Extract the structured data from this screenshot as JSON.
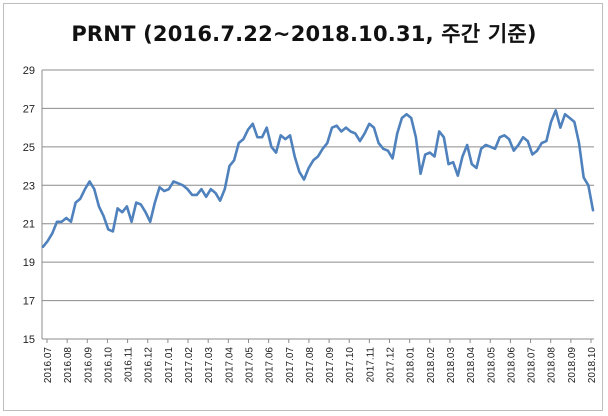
{
  "chart_data": {
    "type": "line",
    "title": "PRNT  (2016.7.22~2018.10.31, 주간 기준)",
    "xlabel": "",
    "ylabel": "",
    "ylim": [
      15,
      29
    ],
    "yticks": [
      15,
      17,
      19,
      21,
      23,
      25,
      27,
      29
    ],
    "grid": "horizontal",
    "legend": "none",
    "line_color": "#4F81BD",
    "x_labels": [
      "2016.07",
      "2016.08",
      "2016.09",
      "2016.10",
      "2016.11",
      "2016.12",
      "2017.01",
      "2017.02",
      "2017.03",
      "2017.04",
      "2017.05",
      "2017.06",
      "2017.07",
      "2017.08",
      "2017.09",
      "2017.10",
      "2017.11",
      "2017.12",
      "2018.01",
      "2018.02",
      "2018.03",
      "2018.04",
      "2018.05",
      "2018.06",
      "2018.07",
      "2018.08",
      "2018.09",
      "2018.10"
    ],
    "series": [
      {
        "values": [
          19.8,
          20.1,
          20.5,
          21.1,
          21.1,
          21.3,
          21.1,
          22.1,
          22.3,
          22.8,
          23.2,
          22.8,
          21.9,
          21.4,
          20.7,
          20.6,
          21.8,
          21.6,
          21.9,
          21.1,
          22.1,
          22.0,
          21.6,
          21.1,
          22.1,
          22.9,
          22.7,
          22.8,
          23.2,
          23.1,
          23.0,
          22.8,
          22.5,
          22.5,
          22.8,
          22.4,
          22.8,
          22.6,
          22.2,
          22.8,
          24.0,
          24.3,
          25.2,
          25.4,
          25.9,
          26.2,
          25.5,
          25.5,
          26.0,
          25.0,
          24.7,
          25.6,
          25.4,
          25.6,
          24.5,
          23.7,
          23.3,
          23.9,
          24.3,
          24.5,
          24.9,
          25.2,
          26.0,
          26.1,
          25.8,
          26.0,
          25.8,
          25.7,
          25.3,
          25.7,
          26.2,
          26.0,
          25.2,
          24.9,
          24.8,
          24.4,
          25.7,
          26.5,
          26.7,
          26.5,
          25.5,
          23.6,
          24.6,
          24.7,
          24.5,
          25.8,
          25.5,
          24.1,
          24.2,
          23.5,
          24.5,
          25.1,
          24.1,
          23.9,
          24.9,
          25.1,
          25.0,
          24.9,
          25.5,
          25.6,
          25.4,
          24.8,
          25.1,
          25.5,
          25.3,
          24.6,
          24.8,
          25.2,
          25.3,
          26.3,
          26.9,
          26.0,
          26.7,
          26.5,
          26.3,
          25.2,
          23.4,
          23.0,
          21.7
        ]
      }
    ]
  }
}
